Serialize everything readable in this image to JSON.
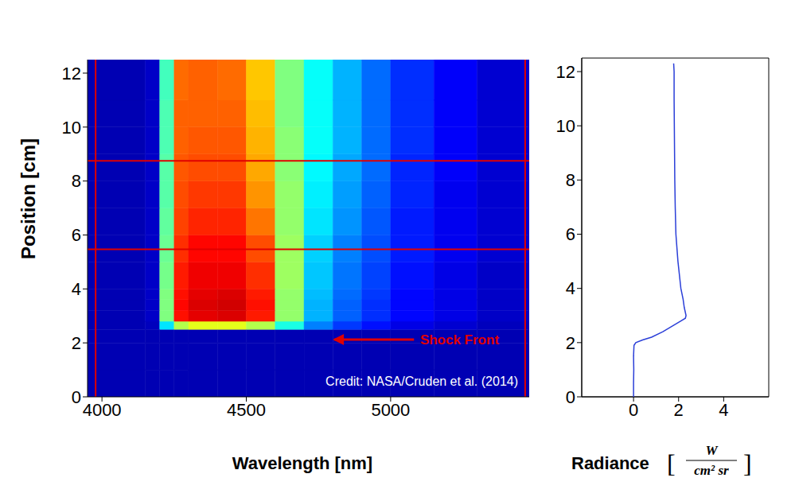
{
  "chart_data": [
    {
      "type": "heatmap",
      "x_label": "Wavelength [nm]",
      "y_label": "Position [cm]",
      "xlim": [
        3950,
        5480
      ],
      "xticks": [
        4000,
        4500,
        5000
      ],
      "ylim": [
        0,
        12.5
      ],
      "yticks": [
        0,
        2,
        4,
        6,
        8,
        10,
        12
      ],
      "x_edges": [
        3950,
        4150,
        4200,
        4250,
        4300,
        4400,
        4500,
        4600,
        4700,
        4800,
        4900,
        5000,
        5150,
        5300,
        5480
      ],
      "y_edges": [
        0,
        1,
        2,
        2.5,
        2.8,
        3.2,
        3.6,
        4,
        5,
        6,
        7,
        8,
        9,
        10,
        11,
        12.5
      ],
      "cells": [
        [
          0.05,
          0.05,
          0.05,
          0.05,
          0.05,
          0.05,
          0.05,
          0.05,
          0.05,
          0.05,
          0.05,
          0.05,
          0.05,
          0.05
        ],
        [
          0.05,
          0.05,
          0.05,
          0.05,
          0.05,
          0.05,
          0.05,
          0.05,
          0.05,
          0.05,
          0.05,
          0.05,
          0.05,
          0.05
        ],
        [
          0.05,
          0.05,
          0.05,
          0.05,
          0.05,
          0.05,
          0.05,
          0.05,
          0.05,
          0.05,
          0.05,
          0.05,
          0.05,
          0.05
        ],
        [
          0.05,
          0.06,
          0.35,
          0.55,
          0.6,
          0.6,
          0.55,
          0.4,
          0.25,
          0.18,
          0.14,
          0.1,
          0.08,
          0.06
        ],
        [
          0.05,
          0.07,
          0.5,
          0.86,
          0.9,
          0.91,
          0.85,
          0.52,
          0.3,
          0.22,
          0.17,
          0.13,
          0.1,
          0.07
        ],
        [
          0.05,
          0.07,
          0.5,
          0.87,
          0.91,
          0.92,
          0.86,
          0.52,
          0.3,
          0.22,
          0.17,
          0.13,
          0.1,
          0.07
        ],
        [
          0.05,
          0.07,
          0.5,
          0.86,
          0.9,
          0.91,
          0.85,
          0.52,
          0.31,
          0.23,
          0.18,
          0.13,
          0.1,
          0.07
        ],
        [
          0.05,
          0.07,
          0.49,
          0.85,
          0.89,
          0.89,
          0.83,
          0.53,
          0.32,
          0.24,
          0.19,
          0.14,
          0.1,
          0.07
        ],
        [
          0.05,
          0.07,
          0.48,
          0.83,
          0.87,
          0.87,
          0.8,
          0.53,
          0.33,
          0.25,
          0.2,
          0.15,
          0.11,
          0.08
        ],
        [
          0.05,
          0.07,
          0.47,
          0.81,
          0.84,
          0.84,
          0.76,
          0.52,
          0.35,
          0.27,
          0.21,
          0.15,
          0.11,
          0.08
        ],
        [
          0.05,
          0.07,
          0.46,
          0.8,
          0.82,
          0.82,
          0.73,
          0.52,
          0.36,
          0.28,
          0.22,
          0.16,
          0.11,
          0.08
        ],
        [
          0.05,
          0.07,
          0.46,
          0.79,
          0.8,
          0.8,
          0.71,
          0.51,
          0.37,
          0.29,
          0.23,
          0.16,
          0.12,
          0.08
        ],
        [
          0.05,
          0.07,
          0.45,
          0.78,
          0.79,
          0.79,
          0.7,
          0.51,
          0.38,
          0.3,
          0.23,
          0.17,
          0.12,
          0.08
        ],
        [
          0.05,
          0.07,
          0.45,
          0.78,
          0.78,
          0.78,
          0.69,
          0.5,
          0.38,
          0.3,
          0.23,
          0.17,
          0.12,
          0.08
        ],
        [
          0.05,
          0.07,
          0.44,
          0.77,
          0.78,
          0.77,
          0.68,
          0.5,
          0.38,
          0.3,
          0.23,
          0.17,
          0.12,
          0.08
        ]
      ],
      "color_range": [
        0,
        1
      ],
      "hlines": [
        5.47,
        8.75
      ],
      "vlines": [
        3978,
        5466
      ],
      "annotations": [
        {
          "text": "Shock Front",
          "x": 5102,
          "y": 2.12,
          "arrow_from": [
            5081,
            2.12
          ],
          "arrow_to": [
            4805,
            2.12
          ]
        }
      ],
      "credit": "Credit: NASA/Cruden et al. (2014)"
    },
    {
      "type": "line",
      "x_label": "Radiance",
      "x_label_unit": {
        "open": "[",
        "numerator": "W",
        "denominator": "cm² sr",
        "close": "]"
      },
      "xlim": [
        -2.3,
        6
      ],
      "xticks": [
        0,
        2,
        4
      ],
      "ylim": [
        0,
        12.5
      ],
      "yticks": [
        0,
        2,
        4,
        6,
        8,
        10,
        12
      ],
      "color": "#2b3fd8",
      "x": [
        0.0,
        0.0,
        0.01,
        0.0,
        0.02,
        0.1,
        0.4,
        0.8,
        1.3,
        1.7,
        2.1,
        2.3,
        2.33,
        2.25,
        2.2,
        2.1,
        1.97,
        1.88,
        1.85,
        1.83,
        1.82,
        1.81,
        1.8,
        1.8,
        1.78
      ],
      "y": [
        0,
        0.5,
        1,
        1.5,
        1.9,
        2.0,
        2.1,
        2.2,
        2.4,
        2.6,
        2.8,
        2.9,
        3.0,
        3.3,
        3.6,
        4.0,
        5,
        6,
        7,
        8,
        9,
        10,
        11,
        12,
        12.3
      ]
    }
  ]
}
